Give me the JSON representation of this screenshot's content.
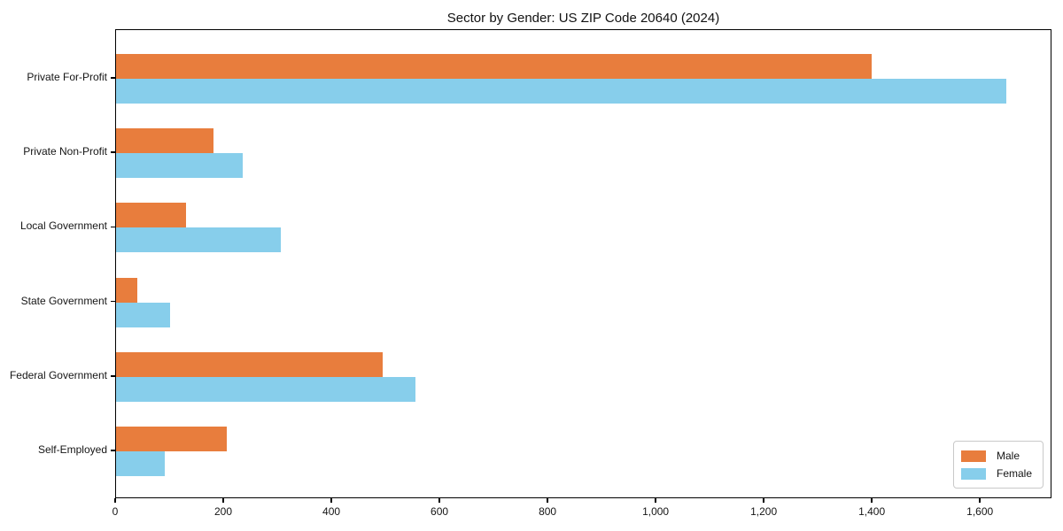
{
  "title": "Sector by Gender: US ZIP Code 20640 (2024)",
  "chart_data": {
    "type": "bar",
    "orientation": "horizontal",
    "title": "Sector by Gender: US ZIP Code 20640 (2024)",
    "xlabel": "",
    "ylabel": "",
    "categories": [
      "Private For-Profit",
      "Private Non-Profit",
      "Local Government",
      "State Government",
      "Federal Government",
      "Self-Employed"
    ],
    "series": [
      {
        "name": "Male",
        "color": "#E87D3D",
        "values": [
          1400,
          180,
          130,
          40,
          495,
          205
        ]
      },
      {
        "name": "Female",
        "color": "#87CEEB",
        "values": [
          1650,
          235,
          305,
          100,
          555,
          90
        ]
      }
    ],
    "xlim": [
      0,
      1732.5
    ],
    "x_ticks": [
      0,
      200,
      400,
      600,
      800,
      1000,
      1200,
      1400,
      1600
    ],
    "x_tick_labels": [
      "0",
      "200",
      "400",
      "600",
      "800",
      "1,000",
      "1,200",
      "1,400",
      "1,600"
    ],
    "grid": false,
    "legend": {
      "position": "lower right",
      "entries": [
        "Male",
        "Female"
      ]
    }
  }
}
